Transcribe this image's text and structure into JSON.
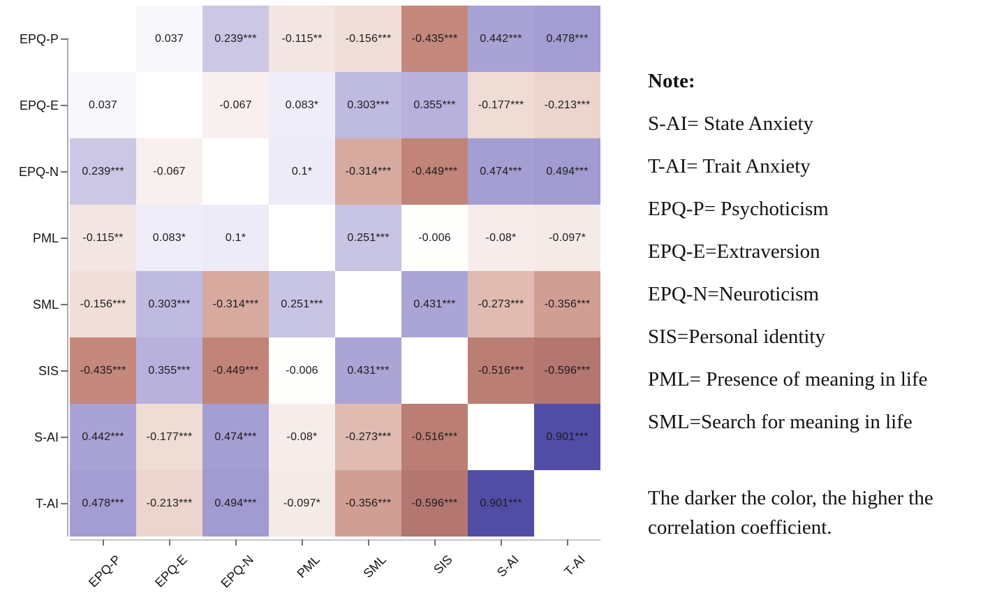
{
  "chart_data": {
    "type": "heatmap",
    "title": "",
    "xlabel": "",
    "ylabel": "",
    "categories": [
      "EPQ-P",
      "EPQ-E",
      "EPQ-N",
      "PML",
      "SML",
      "SIS",
      "S-AI",
      "T-AI"
    ],
    "matrix": [
      [
        null,
        0.037,
        0.239,
        -0.115,
        -0.156,
        -0.435,
        0.442,
        0.478
      ],
      [
        0.037,
        null,
        -0.067,
        0.083,
        0.303,
        0.355,
        -0.177,
        -0.213
      ],
      [
        0.239,
        -0.067,
        null,
        0.1,
        -0.314,
        -0.449,
        0.474,
        0.494
      ],
      [
        -0.115,
        0.083,
        0.1,
        null,
        0.251,
        -0.006,
        -0.08,
        -0.097
      ],
      [
        -0.156,
        0.303,
        -0.314,
        0.251,
        null,
        0.431,
        -0.273,
        -0.356
      ],
      [
        -0.435,
        0.355,
        -0.449,
        -0.006,
        0.431,
        null,
        -0.516,
        -0.596
      ],
      [
        0.442,
        -0.177,
        0.474,
        -0.08,
        -0.273,
        -0.516,
        null,
        0.901
      ],
      [
        0.478,
        -0.213,
        0.494,
        -0.097,
        -0.356,
        -0.596,
        0.901,
        null
      ]
    ],
    "cell_labels": [
      [
        "",
        "0.037",
        "0.239***",
        "-0.115**",
        "-0.156***",
        "-0.435***",
        "0.442***",
        "0.478***"
      ],
      [
        "0.037",
        "",
        "-0.067",
        "0.083*",
        "0.303***",
        "0.355***",
        "-0.177***",
        "-0.213***"
      ],
      [
        "0.239***",
        "-0.067",
        "",
        "0.1*",
        "-0.314***",
        "-0.449***",
        "0.474***",
        "0.494***"
      ],
      [
        "-0.115**",
        "0.083*",
        "0.1*",
        "",
        "0.251***",
        "-0.006",
        "-0.08*",
        "-0.097*"
      ],
      [
        "-0.156***",
        "0.303***",
        "-0.314***",
        "0.251***",
        "",
        "0.431***",
        "-0.273***",
        "-0.356***"
      ],
      [
        "-0.435***",
        "0.355***",
        "-0.449***",
        "-0.006",
        "0.431***",
        "",
        "-0.516***",
        "-0.596***"
      ],
      [
        "0.442***",
        "-0.177***",
        "0.474***",
        "-0.08*",
        "-0.273***",
        "-0.516***",
        "",
        "0.901***"
      ],
      [
        "0.478***",
        "-0.213***",
        "0.494***",
        "-0.097*",
        "-0.356***",
        "-0.596***",
        "0.901***",
        ""
      ]
    ],
    "colormap": {
      "diagonal": "#ffffff",
      "positive_anchors": [
        [
          0,
          "#ffffff"
        ],
        [
          0.1,
          "#ecebf7"
        ],
        [
          0.25,
          "#c8c4e4"
        ],
        [
          0.36,
          "#b6b0db"
        ],
        [
          0.5,
          "#a09ad1"
        ],
        [
          0.9,
          "#514da7"
        ],
        [
          1,
          "#413da0"
        ]
      ],
      "negative_anchors": [
        [
          0,
          "#ffffff"
        ],
        [
          0.1,
          "#f4e9e5"
        ],
        [
          0.21,
          "#ecd6ce"
        ],
        [
          0.31,
          "#d8aba1"
        ],
        [
          0.45,
          "#c28478"
        ],
        [
          0.6,
          "#b37670"
        ],
        [
          1,
          "#96524b"
        ]
      ],
      "cell_text_color": "#1b1b1b"
    },
    "legend_position": "none",
    "grid": "off",
    "x_tick_rotation_deg": 45
  },
  "note": {
    "heading": "Note:",
    "lines": [
      "S-AI= State Anxiety",
      "T-AI= Trait Anxiety",
      "EPQ-P= Psychoticism",
      "EPQ-E=Extraversion",
      "EPQ-N=Neuroticism",
      "SIS=Personal identity",
      "PML= Presence of meaning in life",
      "SML=Search for meaning in life"
    ],
    "footer": "The darker the color, the higher the correlation coefficient."
  }
}
